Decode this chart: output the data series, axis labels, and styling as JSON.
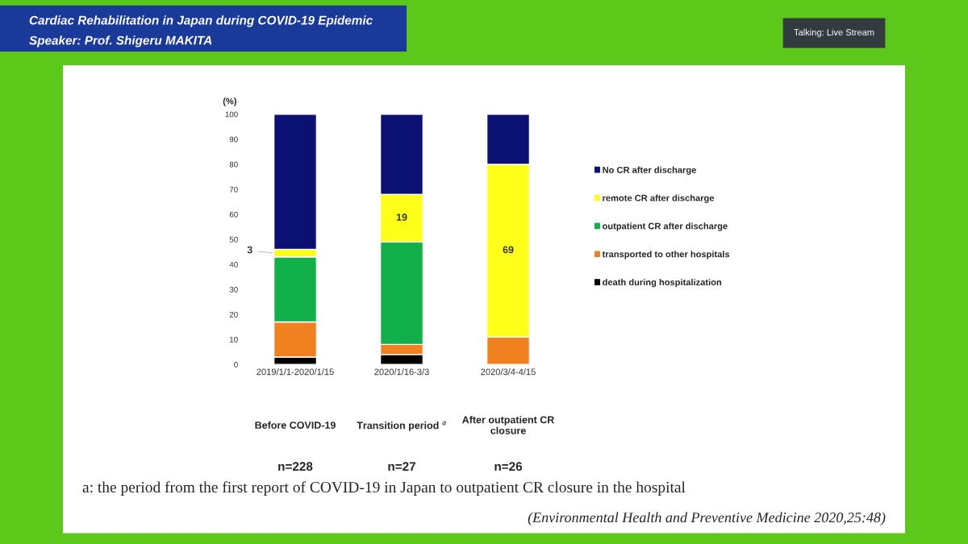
{
  "chart_data": {
    "type": "bar",
    "stacked": true,
    "title": "Cardiac Rehabilitation in Japan during COVID-19 Epidemic",
    "subtitle": "Speaker: Prof. Shigeru MAKITA",
    "ylabel": "(%)",
    "categories": [
      "2019/1/1-2020/1/15",
      "2020/1/16-3/3",
      "2020/3/4-4/15"
    ],
    "series": [
      {
        "name": "death during hospitalization",
        "color": "#000000",
        "values": [
          3,
          4,
          0
        ]
      },
      {
        "name": "transported to other hospitals",
        "color": "#f08020",
        "values": [
          14,
          4,
          11
        ]
      },
      {
        "name": "outpatient CR after discharge",
        "color": "#12b04a",
        "values": [
          26,
          41,
          0
        ]
      },
      {
        "name": "remote CR after discharge",
        "color": "#ffff1a",
        "values": [
          3,
          19,
          69
        ],
        "value_labels": [
          "3",
          "19",
          "69"
        ]
      },
      {
        "name": "No CR after discharge",
        "color": "#0a1172",
        "values": [
          54,
          32,
          20
        ]
      }
    ],
    "ylim": [
      0,
      100
    ],
    "yticks": [
      0,
      10,
      20,
      30,
      40,
      50,
      60,
      70,
      80,
      90,
      100
    ],
    "grid": false,
    "legend": "right",
    "annotations": [
      "Before COVID-19",
      "Transition period $^{a}$",
      "After outpatient CR\nclosure",
      "n=228",
      "n=27",
      "n=26",
      "a: the period from the first report of COVID-19 in Japan to outpatient CR closure in the hospital",
      "(Environmental Health and Preventive Medicine 2020,25:48)",
      "Talking: Live Stream"
    ]
  }
}
